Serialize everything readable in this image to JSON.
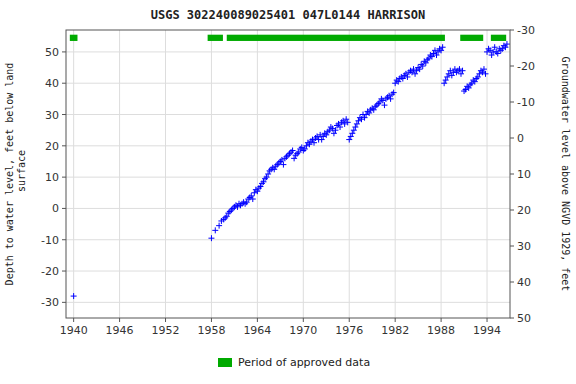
{
  "chart_data": {
    "type": "scatter",
    "title": "USGS 302240089025401 047L0144  HARRISON",
    "ylabel": "Depth to water level, feet below land\n surface",
    "y2label": "Groundwater level above NGVD 1929, feet",
    "xlim": [
      1939,
      1997
    ],
    "xticks": [
      1940,
      1946,
      1952,
      1958,
      1964,
      1970,
      1976,
      1982,
      1988,
      1994
    ],
    "ylim": [
      -35,
      57
    ],
    "yticks": [
      -30,
      -20,
      -10,
      0,
      10,
      20,
      30,
      40,
      50
    ],
    "y2lim": [
      50,
      -30
    ],
    "y2ticks": [
      50,
      40,
      30,
      20,
      10,
      0,
      -10,
      -20,
      -30
    ],
    "grid": true,
    "legend": "bottom",
    "series": [
      {
        "type": "scatter",
        "color": "#0000ff",
        "marker": "plus",
        "x": [
          1940.0,
          1958.0,
          1958.5,
          1959.0,
          1959.3,
          1959.6,
          1959.8,
          1960.0,
          1960.2,
          1960.4,
          1960.6,
          1960.8,
          1961.0,
          1961.2,
          1961.4,
          1961.6,
          1961.8,
          1962.0,
          1962.2,
          1962.4,
          1962.6,
          1962.8,
          1963.0,
          1963.2,
          1963.4,
          1963.6,
          1963.8,
          1964.0,
          1964.2,
          1964.4,
          1964.6,
          1964.8,
          1965.0,
          1965.2,
          1965.4,
          1965.6,
          1965.8,
          1966.0,
          1966.2,
          1966.4,
          1966.6,
          1966.8,
          1967.0,
          1967.2,
          1967.4,
          1967.6,
          1967.8,
          1968.0,
          1968.2,
          1968.4,
          1968.6,
          1968.8,
          1969.0,
          1969.2,
          1969.4,
          1969.6,
          1969.8,
          1970.0,
          1970.2,
          1970.4,
          1970.6,
          1970.8,
          1971.0,
          1971.2,
          1971.4,
          1971.6,
          1971.8,
          1972.0,
          1972.2,
          1972.4,
          1972.6,
          1972.8,
          1973.0,
          1973.2,
          1973.4,
          1973.6,
          1973.8,
          1974.0,
          1974.2,
          1974.4,
          1974.6,
          1974.8,
          1975.0,
          1975.2,
          1975.4,
          1975.6,
          1975.8,
          1976.0,
          1976.2,
          1976.4,
          1976.6,
          1976.8,
          1977.0,
          1977.2,
          1977.4,
          1977.6,
          1977.8,
          1978.0,
          1978.2,
          1978.4,
          1978.6,
          1978.8,
          1979.0,
          1979.2,
          1979.4,
          1979.6,
          1979.8,
          1980.0,
          1980.2,
          1980.4,
          1980.6,
          1980.8,
          1981.0,
          1981.2,
          1981.4,
          1981.6,
          1981.8,
          1982.0,
          1982.2,
          1982.4,
          1982.6,
          1982.8,
          1983.0,
          1983.2,
          1983.4,
          1983.6,
          1983.8,
          1984.0,
          1984.2,
          1984.4,
          1984.6,
          1984.8,
          1985.0,
          1985.2,
          1985.4,
          1985.6,
          1985.8,
          1986.0,
          1986.2,
          1986.4,
          1986.6,
          1986.8,
          1987.0,
          1987.2,
          1987.4,
          1987.6,
          1987.8,
          1988.0,
          1988.2,
          1988.4,
          1988.6,
          1988.8,
          1989.0,
          1989.2,
          1989.4,
          1989.6,
          1989.8,
          1990.0,
          1990.2,
          1990.4,
          1990.6,
          1990.8,
          1991.0,
          1991.2,
          1991.4,
          1991.6,
          1991.8,
          1992.0,
          1992.2,
          1992.4,
          1992.6,
          1992.8,
          1993.0,
          1993.2,
          1993.4,
          1993.6,
          1993.8,
          1994.0,
          1994.2,
          1994.4,
          1994.6,
          1994.8,
          1995.0,
          1995.2,
          1995.4,
          1995.6,
          1995.8,
          1996.0,
          1996.2,
          1996.4,
          1996.6
        ],
        "values": [
          -28.0,
          -9.5,
          -7.0,
          -5.5,
          -4.0,
          -3.5,
          -3.0,
          -2.5,
          -1.5,
          -1.0,
          -0.5,
          0.0,
          0.5,
          1.0,
          0.5,
          1.5,
          1.0,
          1.5,
          2.0,
          1.5,
          2.0,
          3.0,
          3.5,
          4.0,
          3.0,
          5.0,
          6.0,
          5.5,
          6.5,
          7.0,
          8.0,
          8.5,
          9.5,
          10.0,
          11.0,
          12.0,
          12.5,
          13.0,
          12.5,
          13.5,
          14.0,
          14.5,
          15.0,
          15.5,
          14.0,
          16.0,
          16.5,
          17.0,
          17.5,
          18.0,
          18.5,
          16.0,
          17.0,
          17.5,
          18.0,
          19.0,
          19.5,
          18.5,
          19.0,
          20.0,
          21.0,
          20.5,
          21.5,
          22.0,
          21.0,
          22.5,
          23.0,
          22.0,
          23.5,
          22.0,
          23.0,
          24.0,
          23.5,
          24.5,
          25.0,
          26.0,
          25.5,
          24.0,
          25.0,
          26.5,
          27.0,
          26.0,
          27.5,
          28.0,
          27.0,
          28.5,
          27.5,
          22.0,
          23.0,
          24.0,
          25.0,
          26.0,
          27.0,
          28.0,
          29.0,
          28.5,
          30.0,
          29.0,
          30.0,
          31.0,
          30.5,
          31.5,
          32.0,
          31.5,
          32.5,
          33.0,
          33.5,
          34.0,
          35.0,
          34.5,
          33.0,
          35.0,
          35.5,
          36.0,
          35.0,
          36.5,
          37.0,
          40.0,
          41.0,
          40.5,
          41.5,
          42.0,
          41.5,
          42.5,
          43.0,
          42.0,
          43.5,
          44.0,
          43.5,
          44.5,
          43.0,
          44.0,
          45.0,
          44.5,
          46.0,
          45.5,
          47.0,
          46.5,
          47.5,
          48.0,
          49.0,
          48.5,
          49.5,
          50.5,
          49.0,
          50.0,
          51.0,
          50.5,
          51.5,
          40.0,
          41.0,
          42.0,
          43.0,
          44.0,
          42.5,
          43.5,
          44.5,
          43.5,
          44.0,
          44.5,
          43.0,
          44.0,
          37.5,
          38.0,
          39.0,
          38.5,
          39.5,
          40.0,
          41.0,
          40.5,
          41.5,
          42.0,
          43.0,
          44.0,
          43.5,
          44.5,
          43.0,
          50.0,
          51.0,
          50.5,
          49.0,
          50.0,
          51.5,
          50.0,
          49.5,
          51.0,
          50.5,
          51.0,
          52.0,
          51.5,
          52.5
        ]
      },
      {
        "name": "Period of approved data",
        "type": "bar",
        "orientation": "horizontal",
        "color": "#00aa00",
        "periods": [
          [
            1939.5,
            1940.5
          ],
          [
            1957.5,
            1959.5
          ],
          [
            1960.0,
            1988.5
          ],
          [
            1990.5,
            1993.5
          ],
          [
            1994.5,
            1996.5
          ]
        ],
        "y": 54.5,
        "height": 2.0
      }
    ]
  }
}
